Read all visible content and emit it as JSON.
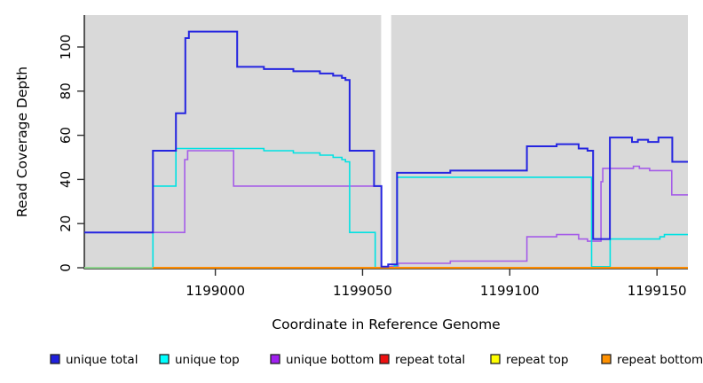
{
  "chart_data": {
    "type": "line",
    "title": "",
    "xlabel": "Coordinate in Reference Genome",
    "ylabel": "Read Coverage Depth",
    "xlim": [
      1198955.5,
      1199160.5
    ],
    "ylim": [
      0,
      114
    ],
    "x_ticks": [
      1199000,
      1199050,
      1199100,
      1199150
    ],
    "y_ticks": [
      0,
      20,
      40,
      60,
      80,
      100
    ],
    "grid": false,
    "legend_position": "bottom",
    "plot_background": "#d9d9d9",
    "gap_region": {
      "from": 1199056.3,
      "to": 1199059.7,
      "color": "#ffffff"
    },
    "baseline_overlap": {
      "from": 1198955.5,
      "to": 1198978.8,
      "color": "#8fd48f"
    },
    "draw_order": [
      "repeat total",
      "repeat top",
      "unique bottom",
      "unique top",
      "repeat bottom",
      "baseline_overlap",
      "unique total"
    ],
    "series": [
      {
        "name": "unique total",
        "color": "#2525e0",
        "line_width": 2,
        "points": [
          [
            1198955.5,
            16
          ],
          [
            1198978.8,
            53
          ],
          [
            1198986.6,
            70
          ],
          [
            1198989.8,
            104
          ],
          [
            1198991,
            107
          ],
          [
            1199007.4,
            91
          ],
          [
            1199016.5,
            90
          ],
          [
            1199026.5,
            89
          ],
          [
            1199035.5,
            88
          ],
          [
            1199040,
            87
          ],
          [
            1199043,
            86
          ],
          [
            1199044.2,
            85
          ],
          [
            1199045.6,
            53
          ],
          [
            1199053.9,
            37
          ],
          [
            1199056.4,
            0.5
          ],
          [
            1199058.7,
            1.5
          ],
          [
            1199061.7,
            43
          ],
          [
            1199079.8,
            44
          ],
          [
            1199105.8,
            55
          ],
          [
            1199115.9,
            56
          ],
          [
            1199123.4,
            54
          ],
          [
            1199126.4,
            53
          ],
          [
            1199128.3,
            13
          ],
          [
            1199134,
            59
          ],
          [
            1199141.5,
            57
          ],
          [
            1199143.5,
            58
          ],
          [
            1199147,
            57
          ],
          [
            1199150.5,
            59
          ],
          [
            1199155.2,
            48
          ]
        ]
      },
      {
        "name": "unique top",
        "color": "#00e2e2",
        "line_width": 1.6,
        "points": [
          [
            1198955.5,
            0
          ],
          [
            1198978.8,
            37
          ],
          [
            1198986.6,
            54
          ],
          [
            1199016.5,
            53
          ],
          [
            1199026.5,
            52
          ],
          [
            1199035.5,
            51
          ],
          [
            1199040,
            50
          ],
          [
            1199043,
            49
          ],
          [
            1199044.2,
            48
          ],
          [
            1199045.6,
            16
          ],
          [
            1199054.3,
            0
          ],
          [
            1199060.8,
            1
          ],
          [
            1199061.8,
            41
          ],
          [
            1199127.8,
            0.5
          ],
          [
            1199134.1,
            13
          ],
          [
            1199151,
            14
          ],
          [
            1199152.5,
            15
          ]
        ]
      },
      {
        "name": "unique bottom",
        "color": "#a55ce8",
        "line_width": 1.6,
        "points": [
          [
            1198955.5,
            16
          ],
          [
            1198989.6,
            49
          ],
          [
            1198990.6,
            53
          ],
          [
            1199006.2,
            37
          ],
          [
            1199056.4,
            0.5
          ],
          [
            1199062.1,
            2
          ],
          [
            1199079.8,
            3
          ],
          [
            1199105.8,
            14
          ],
          [
            1199115.9,
            15
          ],
          [
            1199123.4,
            13
          ],
          [
            1199126.4,
            12
          ],
          [
            1199131,
            39
          ],
          [
            1199131.6,
            45
          ],
          [
            1199142,
            46
          ],
          [
            1199144,
            45
          ],
          [
            1199147.5,
            44
          ],
          [
            1199155,
            33
          ]
        ]
      },
      {
        "name": "repeat total",
        "color": "#e01010",
        "line_width": 1.6,
        "points": [
          [
            1198955.5,
            0
          ]
        ]
      },
      {
        "name": "repeat top",
        "color": "#f0f000",
        "line_width": 1.6,
        "points": [
          [
            1198955.5,
            0
          ]
        ]
      },
      {
        "name": "repeat bottom",
        "color": "#ff8c00",
        "line_width": 2,
        "points": [
          [
            1198955.5,
            0
          ]
        ]
      }
    ],
    "legend": [
      {
        "label": "unique total",
        "color": "#2020dd"
      },
      {
        "label": "unique top",
        "color": "#00ffff"
      },
      {
        "label": "unique bottom",
        "color": "#a020f0"
      },
      {
        "label": "repeat total",
        "color": "#ee1111"
      },
      {
        "label": "repeat top",
        "color": "#ffff00"
      },
      {
        "label": "repeat bottom",
        "color": "#ff9100"
      }
    ]
  }
}
